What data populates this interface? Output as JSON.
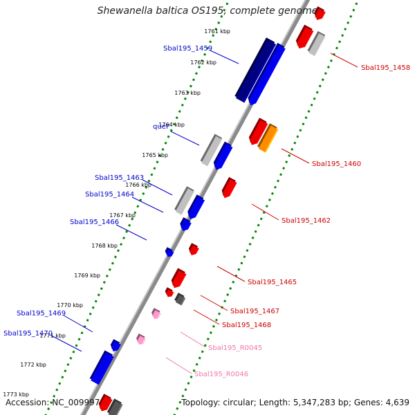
{
  "title": "Shewanella baltica OS195, complete genome",
  "accession": "Accession: NC_009997",
  "summary": "Topology: circular; Length: 5,347,283 bp; Genes: 4,639",
  "colors": {
    "plus_strand": "#0000ee",
    "plus_strand_dark": "#000080",
    "minus_strand": "#ee0000",
    "pseudo": "#c0c0c0",
    "orange": "#ff8c00",
    "rna": "#ff99cc",
    "grey_dark": "#555555",
    "tick_green": "#008800",
    "backbone": "#8a8a8a",
    "plus_label": "#0000cc",
    "minus_label": "#cc0000",
    "rna_label": "#ee77aa"
  },
  "ticks": [
    "1761 kbp",
    "1762 kbp",
    "1763 kbp",
    "1764 kbp",
    "1765 kbp",
    "1766 kbp",
    "1767 kbp",
    "1768 kbp",
    "1769 kbp",
    "1770 kbp",
    "1771 kbp",
    "1772 kbp",
    "1773 kbp"
  ],
  "gene_labels_left": [
    "Sbal195_1459",
    "queF",
    "Sbal195_1463",
    "Sbal195_1464",
    "Sbal195_1466",
    "Sbal195_1469",
    "Sbal195_1470"
  ],
  "gene_labels_right": [
    "Sbal195_1458",
    "Sbal195_1460",
    "Sbal195_1462",
    "Sbal195_1465",
    "Sbal195_1467",
    "Sbal195_1468"
  ],
  "rna_labels": [
    "Sbal195_R0045",
    "Sbal195_R0046"
  ]
}
